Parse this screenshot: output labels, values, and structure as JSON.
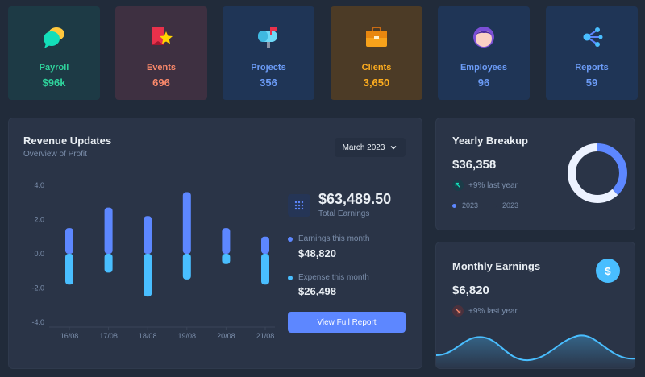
{
  "stats": [
    {
      "label": "Payroll",
      "value": "$96k",
      "icon": "chat-bubble-icon"
    },
    {
      "label": "Events",
      "value": "696",
      "icon": "star-flag-icon"
    },
    {
      "label": "Projects",
      "value": "356",
      "icon": "mailbox-icon"
    },
    {
      "label": "Clients",
      "value": "3,650",
      "icon": "briefcase-icon"
    },
    {
      "label": "Employees",
      "value": "96",
      "icon": "user-avatar-icon"
    },
    {
      "label": "Reports",
      "value": "59",
      "icon": "share-nodes-icon"
    }
  ],
  "revenue": {
    "title": "Revenue Updates",
    "subtitle": "Overview of Profit",
    "month_select": "March 2023",
    "total_value": "$63,489.50",
    "total_label": "Total Earnings",
    "earnings_label": "Earnings this month",
    "earnings_value": "$48,820",
    "expense_label": "Expense this month",
    "expense_value": "$26,498",
    "button": "View Full Report"
  },
  "chart_data": {
    "type": "bar",
    "categories": [
      "16/08",
      "17/08",
      "18/08",
      "19/08",
      "20/08",
      "21/08"
    ],
    "ylim": [
      -4.0,
      4.0
    ],
    "yticks": [
      "4.0",
      "2.0",
      "0.0",
      "-2.0",
      "-4.0"
    ],
    "series": [
      {
        "name": "Earnings",
        "values": [
          1.5,
          2.7,
          2.2,
          3.6,
          1.5,
          1.0
        ]
      },
      {
        "name": "Expense",
        "values": [
          -1.8,
          -1.1,
          -2.5,
          -1.5,
          -0.6,
          -1.8
        ]
      }
    ],
    "colors": {
      "earnings": "#5d87ff",
      "expense": "#49beff"
    }
  },
  "yearly": {
    "title": "Yearly Breakup",
    "value": "$36,358",
    "trend": "+9% last year",
    "legend": [
      "2023",
      "2023"
    ],
    "donut": [
      {
        "value": 38,
        "color": "#5d87ff"
      },
      {
        "value": 62,
        "color": "#ecf2ff"
      }
    ]
  },
  "monthly": {
    "title": "Monthly Earnings",
    "value": "$6,820",
    "trend": "+9% last year",
    "button_symbol": "$"
  },
  "colors": {
    "background": "#212b3a",
    "panel": "#2a3447",
    "primary": "#5d87ff",
    "secondary": "#49beff",
    "success": "#13deb9",
    "error": "#fa896b"
  }
}
